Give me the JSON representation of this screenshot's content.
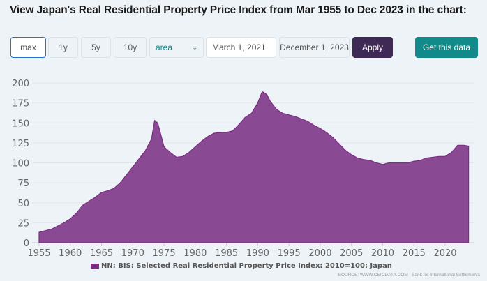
{
  "title": "View Japan's Real Residential Property Price Index from Mar 1955 to Dec 2023 in the chart:",
  "controls": {
    "ranges": [
      "max",
      "1y",
      "5y",
      "10y"
    ],
    "chart_type": "area",
    "start_date": "March 1, 2021",
    "end_date": "December 1, 2023",
    "apply": "Apply",
    "get_data": "Get this data"
  },
  "colors": {
    "area": "#8a4a93",
    "line": "#7b2d83",
    "apply": "#3f2a56",
    "get": "#138a8a"
  },
  "chart_data": {
    "type": "area",
    "title": "",
    "xlabel": "",
    "ylabel": "",
    "xlim": [
      1955,
      2023.9
    ],
    "ylim": [
      0,
      200
    ],
    "xticks": [
      1955,
      1960,
      1965,
      1970,
      1975,
      1980,
      1985,
      1990,
      1995,
      2000,
      2005,
      2010,
      2015,
      2020
    ],
    "yticks": [
      0,
      25,
      50,
      75,
      100,
      125,
      150,
      175,
      200
    ],
    "legend": "NN: BIS: Selected Real Residential Property Price Index: 2010=100: Japan",
    "legend_position": "bottom",
    "source": "SOURCE: WWW.CEICDATA.COM | Bank for International Settlements",
    "x": [
      1955,
      1957,
      1959,
      1960,
      1961,
      1962,
      1963,
      1964,
      1965,
      1966,
      1967,
      1968,
      1969,
      1970,
      1971,
      1972,
      1973,
      1973.5,
      1974,
      1974.5,
      1975,
      1976,
      1977,
      1978,
      1979,
      1980,
      1981,
      1982,
      1983,
      1984,
      1985,
      1986,
      1987,
      1988,
      1989,
      1990,
      1990.7,
      1991,
      1991.5,
      1992,
      1993,
      1994,
      1995,
      1996,
      1997,
      1998,
      1999,
      2000,
      2001,
      2002,
      2003,
      2004,
      2005,
      2006,
      2007,
      2008,
      2009,
      2010,
      2011,
      2012,
      2013,
      2014,
      2015,
      2016,
      2017,
      2018,
      2019,
      2020,
      2021,
      2022,
      2023,
      2023.75
    ],
    "values": [
      13,
      17,
      25,
      30,
      37,
      47,
      52,
      57,
      63,
      65,
      68,
      75,
      85,
      95,
      105,
      115,
      130,
      153,
      150,
      135,
      120,
      113,
      107,
      108,
      113,
      120,
      127,
      133,
      137,
      138,
      138,
      140,
      148,
      157,
      162,
      175,
      189,
      188,
      185,
      177,
      167,
      162,
      160,
      158,
      155,
      152,
      147,
      143,
      138,
      132,
      124,
      116,
      110,
      106,
      104,
      103,
      100,
      98,
      100,
      100,
      100,
      100,
      102,
      103,
      106,
      107,
      108,
      108,
      113,
      122,
      122,
      121
    ]
  }
}
